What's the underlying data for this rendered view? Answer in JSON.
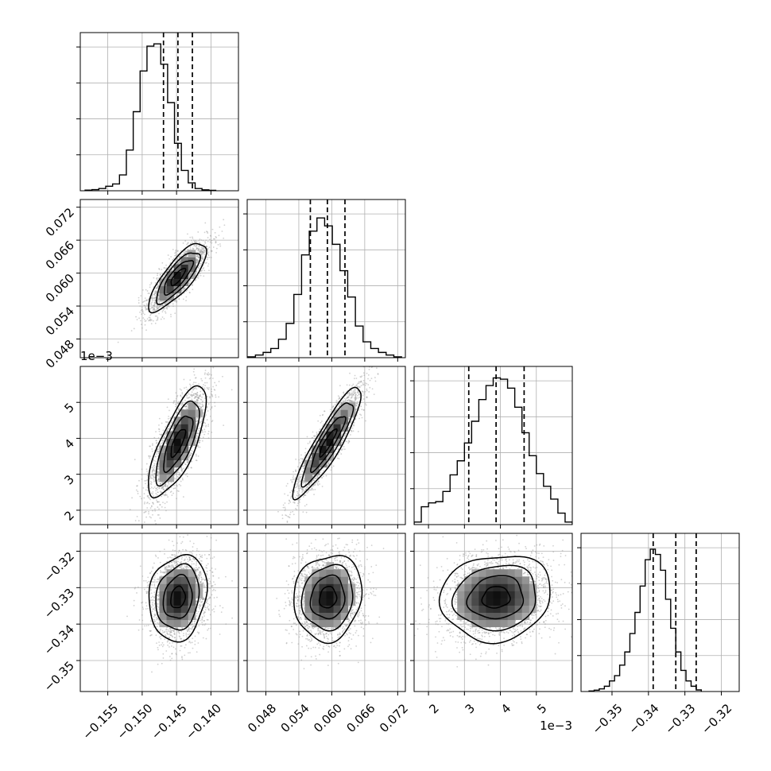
{
  "chart_data": {
    "type": "corner",
    "grid": true,
    "colors": {
      "line": "#000000",
      "grid": "#b0b0b0",
      "scatter": "#9a9a9a",
      "density_dark": "#000000",
      "density_light": "#ffffff"
    },
    "variables": [
      {
        "range": [
          -0.159,
          -0.136
        ],
        "ticks": [
          -0.155,
          -0.15,
          -0.145,
          -0.14
        ],
        "tick_labels": [
          "−0.155",
          "−0.150",
          "−0.145",
          "−0.140"
        ],
        "offset_label": "",
        "hist_ymax": 0.7,
        "hist": {
          "x0": -0.1583,
          "dx": 0.001,
          "counts": [
            0.003,
            0.005,
            0.01,
            0.02,
            0.03,
            0.07,
            0.18,
            0.35,
            0.53,
            0.64,
            0.65,
            0.56,
            0.39,
            0.21,
            0.09,
            0.035,
            0.01,
            0.004,
            0.002
          ]
        },
        "quantiles": [
          -0.1469,
          -0.1448,
          -0.1427
        ]
      },
      {
        "range": [
          0.0446,
          0.0734
        ],
        "ticks": [
          0.048,
          0.054,
          0.06,
          0.066,
          0.072
        ],
        "tick_labels": [
          "0.048",
          "0.054",
          "0.060",
          "0.066",
          "0.072"
        ],
        "offset_label": "",
        "hist_ymax": 0.6,
        "hist": {
          "x0": 0.0447,
          "dx": 0.0014,
          "counts": [
            0.003,
            0.01,
            0.02,
            0.035,
            0.07,
            0.13,
            0.24,
            0.39,
            0.48,
            0.53,
            0.5,
            0.43,
            0.33,
            0.23,
            0.12,
            0.06,
            0.035,
            0.02,
            0.01,
            0.003
          ]
        },
        "quantiles": [
          0.0561,
          0.0592,
          0.0624
        ]
      },
      {
        "range": [
          1.6,
          6.0
        ],
        "ticks": [
          2,
          3,
          4,
          5
        ],
        "tick_labels": [
          "2",
          "3",
          "4",
          "5"
        ],
        "offset_label": "1e−3",
        "hist_ymax": 0.62,
        "hist": {
          "x0": 1.6,
          "dx": 0.2,
          "counts": [
            0.01,
            0.07,
            0.085,
            0.09,
            0.13,
            0.195,
            0.25,
            0.32,
            0.405,
            0.49,
            0.545,
            0.575,
            0.57,
            0.535,
            0.46,
            0.36,
            0.27,
            0.2,
            0.15,
            0.1,
            0.045,
            0.01
          ]
        },
        "quantiles": [
          3.12,
          3.88,
          4.66
        ]
      },
      {
        "range": [
          -0.3585,
          -0.3151
        ],
        "ticks": [
          -0.35,
          -0.34,
          -0.33,
          -0.32
        ],
        "tick_labels": [
          "−0.35",
          "−0.34",
          "−0.33",
          "−0.32"
        ],
        "offset_label": "",
        "hist_ymax": 0.6,
        "hist": {
          "x0": -0.3563,
          "dx": 0.0014,
          "counts": [
            0.002,
            0.005,
            0.01,
            0.02,
            0.04,
            0.06,
            0.1,
            0.15,
            0.22,
            0.3,
            0.4,
            0.5,
            0.54,
            0.52,
            0.46,
            0.35,
            0.24,
            0.15,
            0.08,
            0.04,
            0.02,
            0.006
          ]
        },
        "quantiles": [
          -0.3387,
          -0.3325,
          -0.3269
        ]
      }
    ],
    "posterior": {
      "means": [
        -0.1448,
        0.0593,
        3.88,
        -0.3327
      ],
      "sds": [
        0.0021,
        0.0031,
        0.77,
        0.0059
      ],
      "correlations": [
        [
          1.0,
          0.8,
          0.75,
          0.15
        ],
        [
          0.8,
          1.0,
          0.9,
          0.1
        ],
        [
          0.75,
          0.9,
          1.0,
          0.1
        ],
        [
          0.15,
          0.1,
          0.1,
          1.0
        ]
      ],
      "contour_levels_sigma": [
        0.5,
        1.0,
        1.5,
        2.0
      ]
    }
  }
}
